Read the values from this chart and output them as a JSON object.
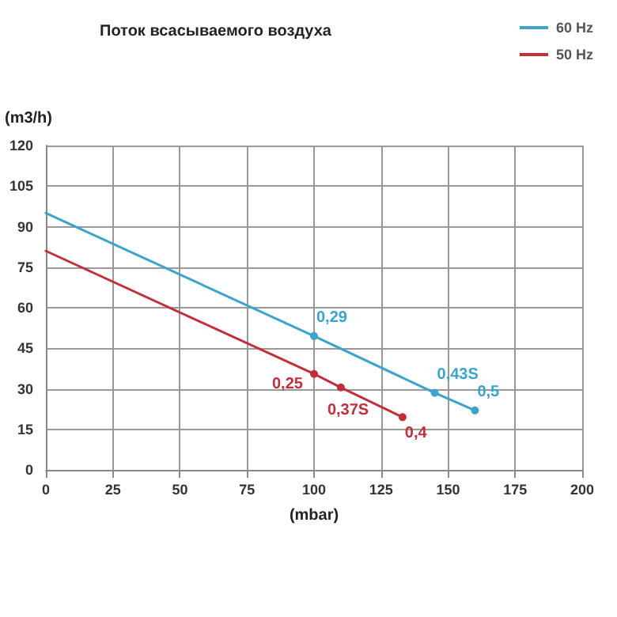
{
  "chart_data": {
    "type": "line",
    "title": "Поток всасываемого воздуха",
    "xlabel": "(mbar)",
    "ylabel": "(m3/h)",
    "series": [
      {
        "name": "60 Hz",
        "color": "#3ba3cc",
        "x": [
          0,
          100,
          145,
          160
        ],
        "values": [
          95,
          49.5,
          28.5,
          22
        ]
      },
      {
        "name": "50 Hz",
        "color": "#c0303a",
        "x": [
          0,
          100,
          110,
          133
        ],
        "values": [
          81,
          35.5,
          30.5,
          19.5
        ]
      }
    ],
    "annotations": [
      {
        "text": "0,29",
        "x": 100,
        "y": 49.5
      },
      {
        "text": "0,43S",
        "x": 145,
        "y": 28.5
      },
      {
        "text": "0,5",
        "x": 160,
        "y": 22
      },
      {
        "text": "0,25",
        "x": 100,
        "y": 35.5
      },
      {
        "text": "0,37S",
        "x": 110,
        "y": 30.5
      },
      {
        "text": "0,4",
        "x": 133,
        "y": 19.5
      }
    ],
    "xlim": [
      0,
      200
    ],
    "xticks": [
      0,
      25,
      50,
      75,
      100,
      125,
      150,
      175,
      200
    ],
    "ylim": [
      0,
      120
    ],
    "yticks": [
      0,
      15,
      30,
      45,
      60,
      75,
      90,
      105,
      120
    ],
    "grid": true,
    "legend": "top right",
    "marker": "circle",
    "line_style": "solid"
  }
}
